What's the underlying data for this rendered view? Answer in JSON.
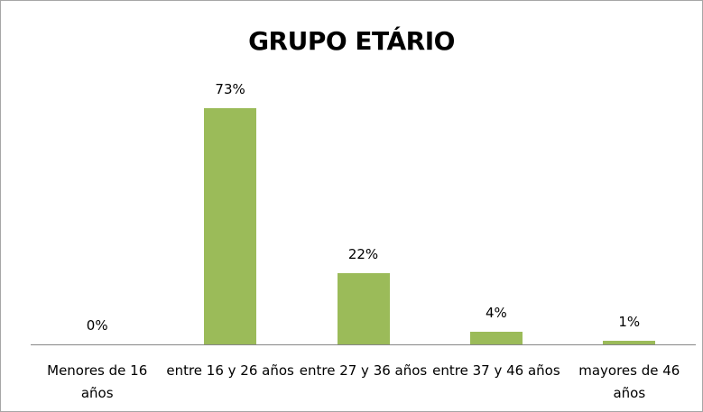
{
  "chart_data": {
    "type": "bar",
    "title": "GRUPO ETÁRIO",
    "categories": [
      "Menores de 16 años",
      "entre 16 y 26 años",
      "entre 27 y 36 años",
      "entre 37 y 46 años",
      "mayores de 46 años"
    ],
    "values": [
      0,
      73,
      22,
      4,
      1
    ],
    "value_labels": [
      "0%",
      "73%",
      "22%",
      "4%",
      "1%"
    ],
    "color": "#9bbb59"
  }
}
